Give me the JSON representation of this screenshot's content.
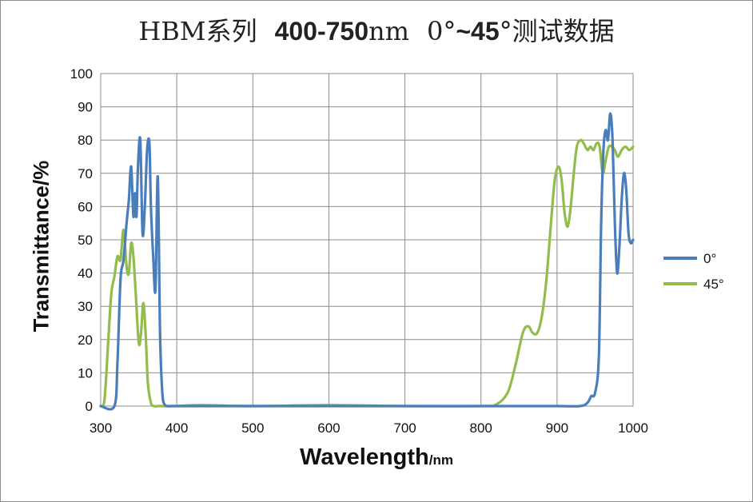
{
  "title": {
    "part1": "HBM系列",
    "part2": "400-750",
    "part3": "nm",
    "part4": "0°",
    "part5": "~45",
    "part6": "°测试数据"
  },
  "chart_data": {
    "type": "line",
    "ylabel": "Transmittance/%",
    "xlabel": "Wavelength",
    "xlabel_unit": "/nm",
    "xlim": [
      300,
      1000
    ],
    "ylim": [
      0,
      100
    ],
    "x_ticks": [
      "300",
      "400",
      "500",
      "600",
      "700",
      "800",
      "900",
      "1000"
    ],
    "y_ticks": [
      "0",
      "10",
      "20",
      "30",
      "40",
      "50",
      "60",
      "70",
      "80",
      "90",
      "100"
    ],
    "grid": true,
    "legend_position": "right",
    "series": [
      {
        "name": "0°",
        "color": "#4a7ebb",
        "x": [
          300,
          318,
          322,
          326,
          330,
          334,
          337,
          340,
          343,
          345,
          347,
          349,
          352,
          355,
          358,
          361,
          364,
          366,
          369,
          372,
          375,
          378,
          381,
          384,
          388,
          392,
          400,
          500,
          600,
          700,
          800,
          900,
          930,
          940,
          945,
          950,
          955,
          958,
          961,
          964,
          967,
          970,
          973,
          976,
          979,
          982,
          985,
          988,
          991,
          994,
          997,
          1000
        ],
        "y": [
          0,
          0,
          13,
          38,
          44,
          55,
          62,
          72,
          57,
          64,
          57,
          72,
          80,
          52,
          60,
          77,
          79,
          60,
          45,
          35,
          69,
          22,
          4,
          0.5,
          0,
          0,
          0,
          0,
          0,
          0,
          0,
          0,
          0,
          1,
          3,
          4,
          15,
          55,
          77,
          83,
          80,
          88,
          80,
          55,
          40,
          48,
          62,
          70,
          65,
          52,
          49,
          50
        ]
      },
      {
        "name": "45°",
        "color": "#92bc4c",
        "x": [
          300,
          305,
          310,
          314,
          318,
          322,
          326,
          330,
          334,
          337,
          340,
          343,
          346,
          350,
          353,
          356,
          359,
          362,
          366,
          370,
          375,
          380,
          400,
          430,
          500,
          600,
          700,
          800,
          820,
          835,
          845,
          855,
          862,
          868,
          874,
          880,
          886,
          892,
          897,
          902,
          906,
          910,
          914,
          918,
          922,
          926,
          931,
          935,
          940,
          944,
          948,
          952,
          956,
          960,
          964,
          968,
          972,
          976,
          980,
          985,
          990,
          995,
          1000
        ],
        "y": [
          0,
          2,
          20,
          34,
          39,
          45,
          44,
          53,
          42,
          40,
          49,
          45,
          34,
          19,
          22,
          31,
          22,
          7,
          1,
          0,
          0,
          0,
          0,
          0.3,
          0,
          0.3,
          0,
          0,
          0.5,
          4,
          12,
          22,
          24,
          22,
          22,
          27,
          38,
          55,
          68,
          72,
          68,
          58,
          54,
          60,
          70,
          78,
          80,
          79,
          77,
          78,
          77,
          79,
          78,
          70,
          74,
          78,
          78,
          77,
          75,
          77,
          78,
          77,
          78
        ]
      }
    ]
  }
}
